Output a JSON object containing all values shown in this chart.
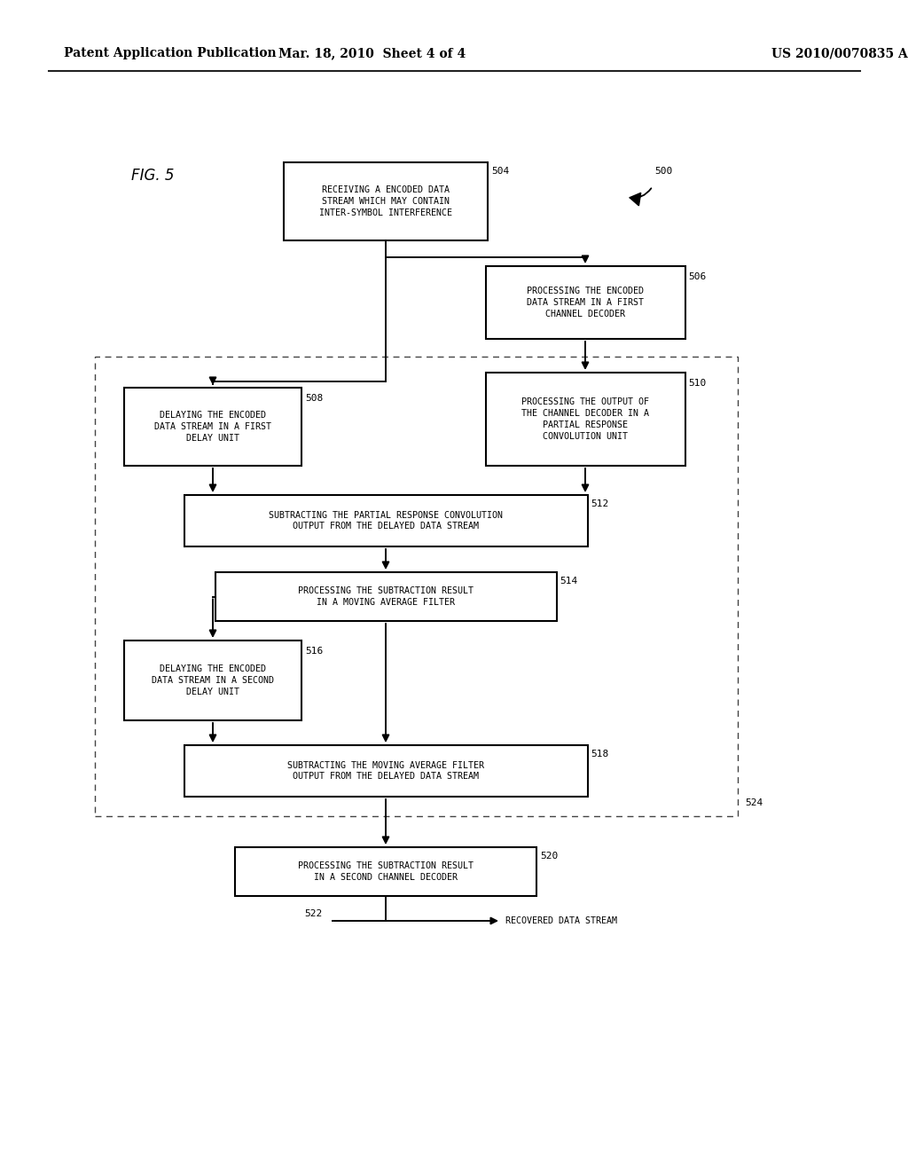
{
  "header_left": "Patent Application Publication",
  "header_mid": "Mar. 18, 2010  Sheet 4 of 4",
  "header_right": "US 2010/0070835 A1",
  "fig_label": "FIG. 5",
  "background_color": "#ffffff",
  "text_color": "#000000",
  "box_edge_color": "#000000",
  "box_fill_color": "#ffffff",
  "dashed_box_color": "#444444",
  "arrow_color": "#000000",
  "label_500": "500",
  "label_504": "504",
  "label_506": "506",
  "label_508": "508",
  "label_510": "510",
  "label_512": "512",
  "label_514": "514",
  "label_516": "516",
  "label_518": "518",
  "label_520": "520",
  "label_522": "522",
  "label_524": "524",
  "box_504_text": "RECEIVING A ENCODED DATA\nSTREAM WHICH MAY CONTAIN\nINTER-SYMBOL INTERFERENCE",
  "box_506_text": "PROCESSING THE ENCODED\nDATA STREAM IN A FIRST\nCHANNEL DECODER",
  "box_508_text": "DELAYING THE ENCODED\nDATA STREAM IN A FIRST\nDELAY UNIT",
  "box_510_text": "PROCESSING THE OUTPUT OF\nTHE CHANNEL DECODER IN A\nPARTIAL RESPONSE\nCONVOLUTION UNIT",
  "box_512_text": "SUBTRACTING THE PARTIAL RESPONSE CONVOLUTION\nOUTPUT FROM THE DELAYED DATA STREAM",
  "box_514_text": "PROCESSING THE SUBTRACTION RESULT\nIN A MOVING AVERAGE FILTER",
  "box_516_text": "DELAYING THE ENCODED\nDATA STREAM IN A SECOND\nDELAY UNIT",
  "box_518_text": "SUBTRACTING THE MOVING AVERAGE FILTER\nOUTPUT FROM THE DELAYED DATA STREAM",
  "box_520_text": "PROCESSING THE SUBTRACTION RESULT\nIN A SECOND CHANNEL DECODER",
  "box_522_text": "RECOVERED DATA STREAM",
  "font_size_header": 10,
  "font_size_box": 7.2,
  "font_size_label": 8,
  "font_size_fig": 12
}
